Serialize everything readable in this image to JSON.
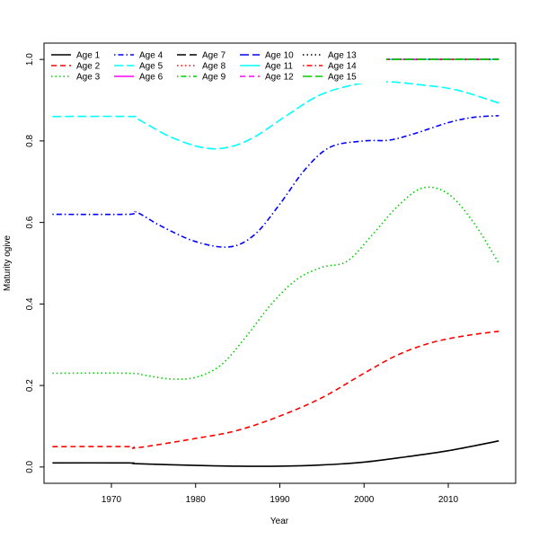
{
  "chart_data": {
    "type": "line",
    "title": "",
    "xlabel": "Year",
    "ylabel": "Maturity ogive",
    "xlim": [
      1962,
      2018
    ],
    "ylim": [
      -0.04,
      1.04
    ],
    "xticks": [
      1970,
      1980,
      1990,
      2000,
      2010
    ],
    "yticks": [
      0.0,
      0.2,
      0.4,
      0.6,
      0.8,
      1.0
    ],
    "ytick_labels": [
      "0.0",
      "0.2",
      "0.4",
      "0.6",
      "0.8",
      "1.0"
    ],
    "legend_placement": "top-left",
    "legend_columns": 5,
    "grid": false,
    "series": [
      {
        "name": "Age 1",
        "color": "#000000",
        "dash": "solid",
        "points": [
          [
            1963,
            0.01
          ],
          [
            1972,
            0.01
          ],
          [
            1973,
            0.008
          ],
          [
            1980,
            0.004
          ],
          [
            1985,
            0.002
          ],
          [
            1990,
            0.002
          ],
          [
            1995,
            0.005
          ],
          [
            2000,
            0.012
          ],
          [
            2005,
            0.025
          ],
          [
            2010,
            0.04
          ],
          [
            2016,
            0.064
          ]
        ]
      },
      {
        "name": "Age 2",
        "color": "#ff0000",
        "dash": "dashed",
        "points": [
          [
            1963,
            0.05
          ],
          [
            1972,
            0.05
          ],
          [
            1973,
            0.047
          ],
          [
            1980,
            0.07
          ],
          [
            1985,
            0.09
          ],
          [
            1990,
            0.125
          ],
          [
            1995,
            0.17
          ],
          [
            2000,
            0.23
          ],
          [
            2004,
            0.275
          ],
          [
            2008,
            0.305
          ],
          [
            2012,
            0.322
          ],
          [
            2016,
            0.333
          ]
        ]
      },
      {
        "name": "Age 3",
        "color": "#00cd00",
        "dash": "dotted",
        "points": [
          [
            1963,
            0.23
          ],
          [
            1972,
            0.23
          ],
          [
            1974,
            0.225
          ],
          [
            1977,
            0.216
          ],
          [
            1980,
            0.22
          ],
          [
            1983,
            0.25
          ],
          [
            1986,
            0.32
          ],
          [
            1989,
            0.4
          ],
          [
            1992,
            0.46
          ],
          [
            1995,
            0.49
          ],
          [
            1998,
            0.505
          ],
          [
            2001,
            0.57
          ],
          [
            2004,
            0.64
          ],
          [
            2007,
            0.685
          ],
          [
            2010,
            0.67
          ],
          [
            2013,
            0.6
          ],
          [
            2016,
            0.5
          ]
        ]
      },
      {
        "name": "Age 4",
        "color": "#0000ff",
        "dash": "dotdash",
        "points": [
          [
            1963,
            0.62
          ],
          [
            1972,
            0.62
          ],
          [
            1973,
            0.625
          ],
          [
            1976,
            0.59
          ],
          [
            1980,
            0.553
          ],
          [
            1984,
            0.54
          ],
          [
            1987,
            0.57
          ],
          [
            1990,
            0.645
          ],
          [
            1993,
            0.73
          ],
          [
            1996,
            0.785
          ],
          [
            2000,
            0.8
          ],
          [
            2003,
            0.802
          ],
          [
            2006,
            0.818
          ],
          [
            2010,
            0.845
          ],
          [
            2013,
            0.858
          ],
          [
            2016,
            0.862
          ]
        ]
      },
      {
        "name": "Age 5",
        "color": "#00ffff",
        "dash": "longdash",
        "points": [
          [
            1963,
            0.86
          ],
          [
            1972,
            0.86
          ],
          [
            1973,
            0.855
          ],
          [
            1977,
            0.81
          ],
          [
            1981,
            0.783
          ],
          [
            1984,
            0.785
          ],
          [
            1987,
            0.81
          ],
          [
            1991,
            0.865
          ],
          [
            1995,
            0.915
          ],
          [
            2000,
            0.943
          ],
          [
            2003,
            0.945
          ],
          [
            2007,
            0.937
          ],
          [
            2011,
            0.925
          ],
          [
            2016,
            0.893
          ]
        ]
      },
      {
        "name": "Age 6",
        "color": "#ff00ff",
        "dash": "solid",
        "points": [
          [
            1963,
            1.0
          ],
          [
            2016,
            1.0
          ]
        ]
      },
      {
        "name": "Age 7",
        "color": "#000000",
        "dash": "longdash",
        "points": [
          [
            1963,
            1.0
          ],
          [
            2016,
            1.0
          ]
        ]
      },
      {
        "name": "Age 8",
        "color": "#ff0000",
        "dash": "dotted",
        "points": [
          [
            1963,
            1.0
          ],
          [
            2016,
            1.0
          ]
        ]
      },
      {
        "name": "Age 9",
        "color": "#00cd00",
        "dash": "dotdash",
        "points": [
          [
            1963,
            1.0
          ],
          [
            2016,
            1.0
          ]
        ]
      },
      {
        "name": "Age 10",
        "color": "#0000ff",
        "dash": "longdash",
        "points": [
          [
            1963,
            1.0
          ],
          [
            2016,
            1.0
          ]
        ]
      },
      {
        "name": "Age 11",
        "color": "#00ffff",
        "dash": "solid",
        "points": [
          [
            1963,
            1.0
          ],
          [
            2016,
            1.0
          ]
        ]
      },
      {
        "name": "Age 12",
        "color": "#ff00ff",
        "dash": "dashed",
        "points": [
          [
            1963,
            1.0
          ],
          [
            2016,
            1.0
          ]
        ]
      },
      {
        "name": "Age 13",
        "color": "#000000",
        "dash": "dotted",
        "points": [
          [
            1963,
            1.0
          ],
          [
            2016,
            1.0
          ]
        ]
      },
      {
        "name": "Age 14",
        "color": "#ff0000",
        "dash": "dotdash",
        "points": [
          [
            1963,
            1.0
          ],
          [
            2016,
            1.0
          ]
        ]
      },
      {
        "name": "Age 15",
        "color": "#00cd00",
        "dash": "longdash",
        "points": [
          [
            1963,
            1.0
          ],
          [
            2016,
            1.0
          ]
        ]
      }
    ]
  }
}
